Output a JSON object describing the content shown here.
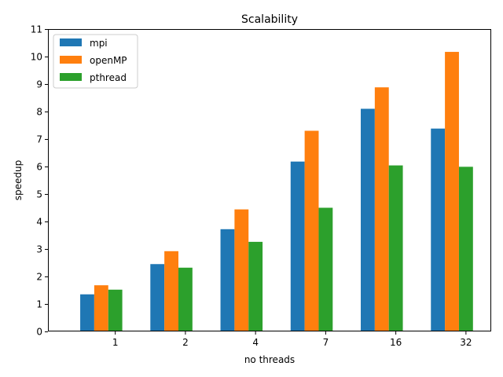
{
  "chart_data": {
    "type": "bar",
    "title": "Scalability",
    "xlabel": "no threads",
    "ylabel": "speedup",
    "categories": [
      "1",
      "2",
      "4",
      "7",
      "16",
      "32"
    ],
    "series": [
      {
        "name": "mpi",
        "color": "#1f77b4",
        "values": [
          1.35,
          2.45,
          3.72,
          6.18,
          8.1,
          7.38
        ]
      },
      {
        "name": "openMP",
        "color": "#ff7f0e",
        "values": [
          1.68,
          2.92,
          4.44,
          7.3,
          8.88,
          10.17
        ]
      },
      {
        "name": "pthread",
        "color": "#2ca02c",
        "values": [
          1.52,
          2.32,
          3.26,
          4.5,
          6.04,
          5.99
        ]
      }
    ],
    "ylim": [
      0,
      11
    ],
    "yticks": [
      0,
      1,
      2,
      3,
      4,
      5,
      6,
      7,
      8,
      9,
      10,
      11
    ],
    "grid": false,
    "legend_position": "top-left"
  }
}
